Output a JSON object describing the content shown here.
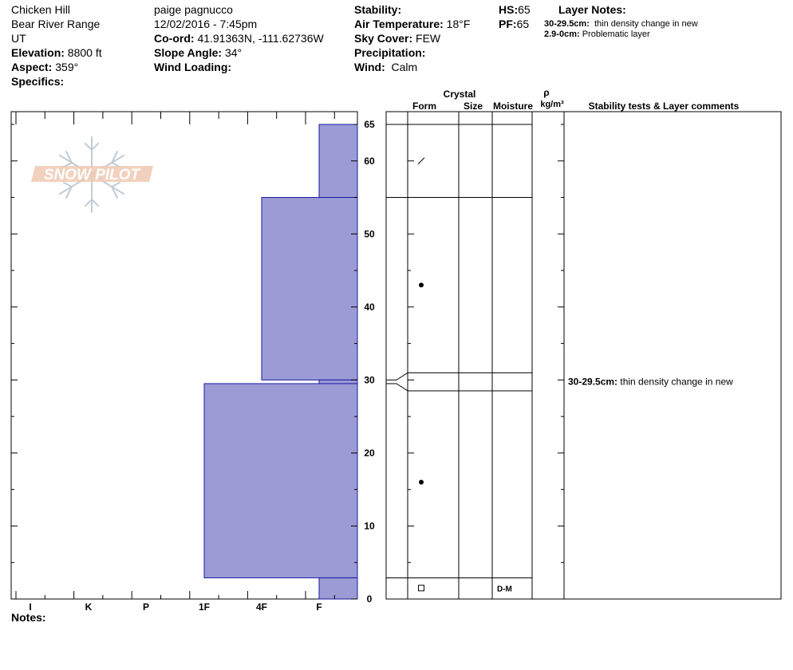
{
  "header": {
    "location": "Chicken Hill",
    "range": "Bear River Range",
    "state": "UT",
    "elevation_label": "Elevation:",
    "elevation_value": "8800 ft",
    "aspect_label": "Aspect:",
    "aspect_value": "359°",
    "specifics_label": "Specifics:",
    "observer": "paige pagnucco",
    "datetime": "12/02/2016 - 7:45pm",
    "coord_label": "Co-ord:",
    "coord_value": "41.91363N, -111.62736W",
    "slope_label": "Slope Angle:",
    "slope_value": "34°",
    "wind_loading_label": "Wind Loading:",
    "stability_label": "Stability:",
    "air_temp_label": "Air Temperature:",
    "air_temp_value": "18°F",
    "sky_label": "Sky Cover:",
    "sky_value": "FEW",
    "precip_label": "Precipitation:",
    "wind_label": "Wind:",
    "wind_value": "Calm",
    "hs_label": "HS:",
    "hs_value": "65",
    "pf_label": "PF:",
    "pf_value": "65",
    "layer_notes_title": "Layer Notes:",
    "layer_notes": [
      {
        "range": "30-29.5cm:",
        "text": "thin density change in new"
      },
      {
        "range": "2.9-0cm:",
        "text": "Problematic layer"
      }
    ]
  },
  "logo_text": "SNOW PILOT",
  "notes_label": "Notes:",
  "table": {
    "crystal_label": "Crystal",
    "rho_label": "ρ",
    "form_label": "Form",
    "size_label": "Size",
    "moisture_label": "Moisture",
    "density_label": "kg/m³",
    "comments_label": "Stability tests & Layer comments"
  },
  "chart_data": {
    "type": "bar",
    "orientation": "horizontal",
    "description_axis_y": "height (cm)",
    "ylim": [
      0,
      67
    ],
    "y_ticks": [
      0,
      10,
      20,
      30,
      40,
      50,
      60,
      65
    ],
    "x_categories": [
      "I",
      "K",
      "P",
      "1F",
      "4F",
      "F"
    ],
    "layers": [
      {
        "top": 65,
        "bottom": 55,
        "hardness": "F"
      },
      {
        "top": 55,
        "bottom": 30,
        "hardness": "4F"
      },
      {
        "top": 30,
        "bottom": 29.5,
        "hardness": "F"
      },
      {
        "top": 29.5,
        "bottom": 2.9,
        "hardness": "1F"
      },
      {
        "top": 2.9,
        "bottom": 0,
        "hardness": "F"
      }
    ],
    "fill_color": "#9b9bd6",
    "stroke_color": "#1a1aa0",
    "grain_symbols": [
      {
        "height": 60,
        "symbol": "slash"
      },
      {
        "height": 43,
        "symbol": "dot"
      },
      {
        "height": 16,
        "symbol": "dot"
      },
      {
        "height": 1.5,
        "symbol": "square"
      }
    ],
    "moisture": [
      {
        "height": 1.5,
        "value": "D-M"
      }
    ],
    "layer_comments": [
      {
        "height": 29.75,
        "range": "30-29.5cm:",
        "text": "thin density change in new"
      }
    ]
  }
}
